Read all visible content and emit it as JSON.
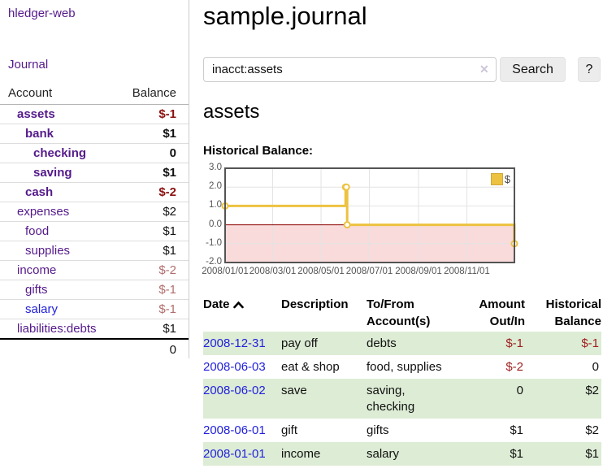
{
  "app": {
    "title": "hledger-web"
  },
  "colors": {
    "link_purple": "#551a8b",
    "link_blue": "#2222dd",
    "negative_bold": "#8b1111",
    "negative_muted": "#b26d6d",
    "negative_register": "#9e1f1f",
    "row_green": "#ddecd5",
    "series_gold": "#edc240"
  },
  "sidebar": {
    "journal_link": "Journal",
    "accounts_table": {
      "headers": [
        "Account",
        "Balance"
      ],
      "rows": [
        {
          "name": "assets",
          "depth": 1,
          "bold": true,
          "balance": "$-1",
          "negative": true,
          "link_color": "purple"
        },
        {
          "name": "bank",
          "depth": 2,
          "bold": true,
          "balance": "$1",
          "negative": false,
          "link_color": "purple"
        },
        {
          "name": "checking",
          "depth": 3,
          "bold": true,
          "balance": "0",
          "negative": false,
          "link_color": "purple"
        },
        {
          "name": "saving",
          "depth": 3,
          "bold": true,
          "balance": "$1",
          "negative": false,
          "link_color": "purple"
        },
        {
          "name": "cash",
          "depth": 2,
          "bold": true,
          "balance": "$-2",
          "negative": true,
          "link_color": "purple"
        },
        {
          "name": "expenses",
          "depth": 1,
          "bold": false,
          "balance": "$2",
          "negative": false,
          "link_color": "purple"
        },
        {
          "name": "food",
          "depth": 2,
          "bold": false,
          "balance": "$1",
          "negative": false,
          "link_color": "purple"
        },
        {
          "name": "supplies",
          "depth": 2,
          "bold": false,
          "balance": "$1",
          "negative": false,
          "link_color": "purple"
        },
        {
          "name": "income",
          "depth": 1,
          "bold": false,
          "balance": "$-2",
          "negative": true,
          "link_color": "purple"
        },
        {
          "name": "gifts",
          "depth": 2,
          "bold": false,
          "balance": "$-1",
          "negative": true,
          "link_color": "purple"
        },
        {
          "name": "salary",
          "depth": 2,
          "bold": false,
          "balance": "$-1",
          "negative": true,
          "link_color": "blue"
        },
        {
          "name": "liabilities:debts",
          "depth": 1,
          "bold": false,
          "balance": "$1",
          "negative": false,
          "link_color": "purple"
        }
      ],
      "total": "0"
    }
  },
  "main": {
    "title": "sample.journal",
    "search": {
      "value": "inacct:assets",
      "clear_icon": "✕",
      "button_label": "Search",
      "help_label": "?"
    },
    "account_heading": "assets",
    "chart_label": "Historical Balance:"
  },
  "chart_data": {
    "type": "line",
    "step": true,
    "title": "Historical Balance:",
    "series": [
      {
        "name": "$",
        "color": "#edc240",
        "points": [
          [
            "2008-01-01",
            1
          ],
          [
            "2008-06-01",
            2
          ],
          [
            "2008-06-02",
            2
          ],
          [
            "2008-06-03",
            0
          ],
          [
            "2008-12-31",
            -1
          ]
        ]
      }
    ],
    "x_range": [
      "2008-01-01",
      "2008-12-31"
    ],
    "y_range": [
      -2,
      3
    ],
    "y_ticks": [
      {
        "label": "3.0",
        "value": 3
      },
      {
        "label": "2.0",
        "value": 2
      },
      {
        "label": "1.0",
        "value": 1
      },
      {
        "label": "0.0",
        "value": 0
      },
      {
        "label": "-1.0",
        "value": -1
      },
      {
        "label": "-2.0",
        "value": -2
      }
    ],
    "x_ticks": [
      {
        "label": "2008/01/01",
        "date": "2008-01-01"
      },
      {
        "label": "2008/03/01",
        "date": "2008-03-01"
      },
      {
        "label": "2008/05/01",
        "date": "2008-05-01"
      },
      {
        "label": "2008/07/01",
        "date": "2008-07-01"
      },
      {
        "label": "2008/09/01",
        "date": "2008-09-01"
      },
      {
        "label": "2008/11/01",
        "date": "2008-11-01"
      }
    ],
    "grid": true,
    "legend": {
      "label": "$",
      "position": "top-right"
    },
    "negative_region": {
      "from": 0,
      "to": -2,
      "color": "#f9dbdb"
    },
    "zero_line_color": "#8b0000"
  },
  "register": {
    "headers": {
      "date": "Date",
      "description": "Description",
      "tofrom_line1": "To/From",
      "tofrom_line2": "Account(s)",
      "amount_line1": "Amount",
      "amount_line2": "Out/In",
      "balance_line1": "Historical",
      "balance_line2": "Balance"
    },
    "rows": [
      {
        "date": "2008-12-31",
        "description": "pay off",
        "accounts": "debts",
        "amount": "$-1",
        "amount_negative": true,
        "balance": "$-1",
        "balance_negative": true
      },
      {
        "date": "2008-06-03",
        "description": "eat & shop",
        "accounts": "food, supplies",
        "amount": "$-2",
        "amount_negative": true,
        "balance": "0",
        "balance_negative": false
      },
      {
        "date": "2008-06-02",
        "description": "save",
        "accounts": "saving, checking",
        "amount": "0",
        "amount_negative": false,
        "balance": "$2",
        "balance_negative": false
      },
      {
        "date": "2008-06-01",
        "description": "gift",
        "accounts": "gifts",
        "amount": "$1",
        "amount_negative": false,
        "balance": "$2",
        "balance_negative": false
      },
      {
        "date": "2008-01-01",
        "description": "income",
        "accounts": "salary",
        "amount": "$1",
        "amount_negative": false,
        "balance": "$1",
        "balance_negative": false
      }
    ]
  }
}
